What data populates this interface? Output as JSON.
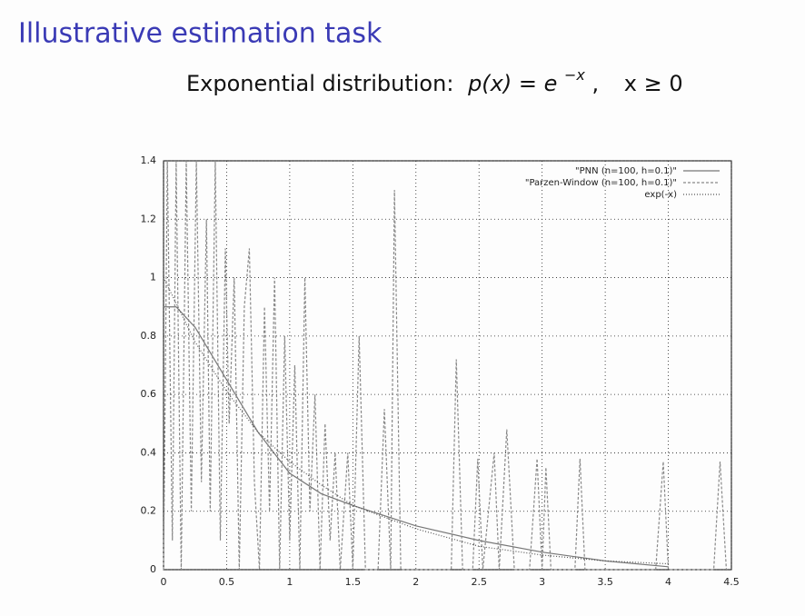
{
  "chart_data": {
    "type": "line",
    "title": "Illustrative estimation task",
    "subtitle": [
      "Exponential distribution:",
      "p(x) = e",
      "−x",
      ",",
      "x ≥ 0"
    ],
    "xlim": [
      0,
      4.5
    ],
    "xticks": [
      0,
      0.5,
      1,
      1.5,
      2,
      2.5,
      3,
      3.5,
      4,
      4.5
    ],
    "ylim": [
      0,
      1.4
    ],
    "yticks": [
      0,
      0.2,
      0.4,
      0.6,
      0.8,
      1,
      1.2,
      1.4
    ],
    "grid": true,
    "legend": "top-right",
    "series": [
      {
        "name": "\"PNN (n=100, h=0.1)\"",
        "color": "#777777",
        "dash": "none",
        "x": [
          0,
          0.1,
          0.25,
          0.5,
          0.75,
          1,
          1.25,
          1.5,
          2,
          2.5,
          3,
          3.5,
          4
        ],
        "values": [
          0.9,
          0.9,
          0.83,
          0.65,
          0.47,
          0.33,
          0.26,
          0.22,
          0.15,
          0.1,
          0.06,
          0.03,
          0.01
        ]
      },
      {
        "name": "\"Parzen-Window (n=100, h=0.1)\"",
        "color": "#888888",
        "dash": "3,2",
        "x": [
          0,
          0.03,
          0.07,
          0.1,
          0.14,
          0.18,
          0.22,
          0.26,
          0.3,
          0.34,
          0.37,
          0.41,
          0.45,
          0.49,
          0.52,
          0.56,
          0.6,
          0.64,
          0.68,
          0.72,
          0.76,
          0.8,
          0.84,
          0.88,
          0.92,
          0.96,
          1.0,
          1.04,
          1.08,
          1.12,
          1.16,
          1.2,
          1.24,
          1.28,
          1.32,
          1.36,
          1.4,
          1.46,
          1.5,
          1.55,
          1.6,
          1.7,
          1.75,
          1.8,
          1.83,
          1.88,
          2.28,
          2.32,
          2.37,
          2.45,
          2.49,
          2.53,
          2.62,
          2.66,
          2.72,
          2.78,
          2.9,
          2.96,
          3.0,
          3.03,
          3.07,
          3.26,
          3.3,
          3.34,
          3.9,
          3.96,
          4.0,
          4.36,
          4.41,
          4.46
        ],
        "values": [
          0,
          1.4,
          0.1,
          1.4,
          0,
          1.4,
          0.2,
          1.4,
          0.3,
          1.2,
          0.2,
          1.4,
          0.1,
          1.1,
          0.5,
          1.0,
          0,
          0.9,
          1.1,
          0.3,
          0,
          0.9,
          0.2,
          1.0,
          0,
          0.8,
          0.1,
          0.7,
          0,
          1.0,
          0.2,
          0.6,
          0,
          0.5,
          0.1,
          0.4,
          0,
          0.4,
          0,
          0.8,
          0,
          0,
          0.55,
          0,
          1.3,
          0,
          0,
          0.72,
          0,
          0,
          0.38,
          0,
          0.4,
          0,
          0.48,
          0,
          0,
          0.38,
          0,
          0.35,
          0,
          0,
          0.38,
          0,
          0,
          0.37,
          0,
          0,
          0.37,
          0
        ]
      },
      {
        "name": "exp(-x)",
        "color": "#555555",
        "dash": "1,2",
        "x": [
          0,
          0.25,
          0.5,
          0.75,
          1,
          1.25,
          1.5,
          2,
          2.5,
          3,
          3.5,
          4
        ],
        "values": [
          1,
          0.78,
          0.61,
          0.47,
          0.37,
          0.29,
          0.22,
          0.14,
          0.08,
          0.05,
          0.03,
          0.02
        ]
      }
    ]
  }
}
